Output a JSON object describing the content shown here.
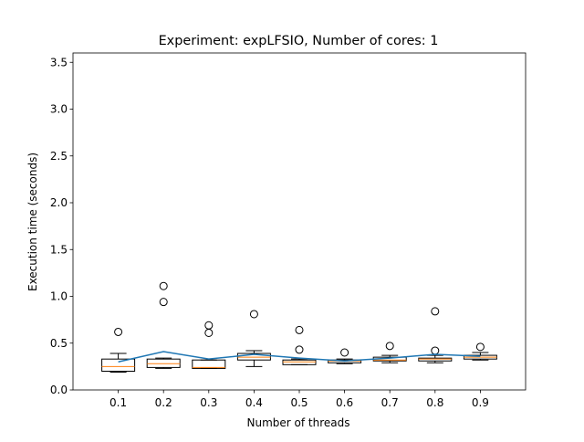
{
  "chart_data": {
    "type": "box",
    "title": "Experiment: expLFSIO, Number of cores: 1",
    "xlabel": "Number of threads",
    "ylabel": "Execution time (seconds)",
    "categories": [
      "0.1",
      "0.2",
      "0.3",
      "0.4",
      "0.5",
      "0.6",
      "0.7",
      "0.8",
      "0.9"
    ],
    "ylim": [
      0,
      3.6
    ],
    "yticks": [
      "0.0",
      "0.5",
      "1.0",
      "1.5",
      "2.0",
      "2.5",
      "3.0",
      "3.5"
    ],
    "boxes": [
      {
        "whisker_low": 0.19,
        "q1": 0.2,
        "median": 0.25,
        "q3": 0.33,
        "whisker_high": 0.39,
        "outliers": [
          0.62
        ]
      },
      {
        "whisker_low": 0.23,
        "q1": 0.24,
        "median": 0.28,
        "q3": 0.33,
        "whisker_high": 0.34,
        "outliers": [
          0.94,
          1.11
        ]
      },
      {
        "whisker_low": 0.23,
        "q1": 0.23,
        "median": 0.24,
        "q3": 0.32,
        "whisker_high": 0.32,
        "outliers": [
          0.61,
          0.69
        ]
      },
      {
        "whisker_low": 0.25,
        "q1": 0.32,
        "median": 0.35,
        "q3": 0.39,
        "whisker_high": 0.42,
        "outliers": [
          0.81
        ]
      },
      {
        "whisker_low": 0.27,
        "q1": 0.27,
        "median": 0.3,
        "q3": 0.32,
        "whisker_high": 0.33,
        "outliers": [
          0.43,
          0.64
        ]
      },
      {
        "whisker_low": 0.28,
        "q1": 0.29,
        "median": 0.31,
        "q3": 0.32,
        "whisker_high": 0.33,
        "outliers": [
          0.4
        ]
      },
      {
        "whisker_low": 0.29,
        "q1": 0.31,
        "median": 0.32,
        "q3": 0.35,
        "whisker_high": 0.37,
        "outliers": [
          0.47
        ]
      },
      {
        "whisker_low": 0.29,
        "q1": 0.31,
        "median": 0.33,
        "q3": 0.34,
        "whisker_high": 0.37,
        "outliers": [
          0.42,
          0.84
        ]
      },
      {
        "whisker_low": 0.32,
        "q1": 0.33,
        "median": 0.35,
        "q3": 0.37,
        "whisker_high": 0.4,
        "outliers": [
          0.46
        ]
      }
    ],
    "mean_line": [
      0.3,
      0.41,
      0.33,
      0.38,
      0.34,
      0.31,
      0.34,
      0.38,
      0.36
    ],
    "colors": {
      "box": "#000000",
      "median": "#ff7f0e",
      "mean_line": "#1f77b4"
    },
    "grid": false
  }
}
